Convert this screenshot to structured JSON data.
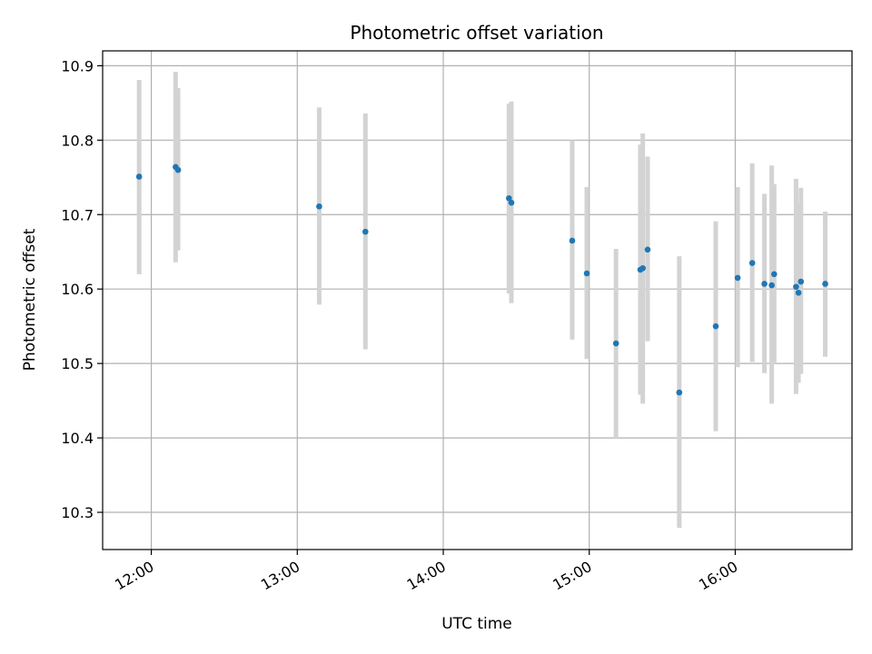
{
  "chart_data": {
    "type": "scatter",
    "title": "Photometric offset variation",
    "xlabel": "UTC time",
    "ylabel": "Photometric offset",
    "x_axis": {
      "kind": "time",
      "range": [
        "11:40",
        "16:48"
      ],
      "ticks": [
        "12:00",
        "13:00",
        "14:00",
        "15:00",
        "16:00"
      ]
    },
    "y_axis": {
      "range": [
        10.25,
        10.92
      ],
      "ticks": [
        "10.3",
        "10.4",
        "10.5",
        "10.6",
        "10.7",
        "10.8",
        "10.9"
      ]
    },
    "grid": true,
    "colors": {
      "marker": "#1f77b4",
      "errorbar": "#d3d3d3",
      "grid": "#b0b0b0"
    },
    "points": [
      {
        "time": "11:55",
        "y": 10.751,
        "yerr_low": 10.62,
        "yerr_high": 10.881
      },
      {
        "time": "12:10",
        "y": 10.764,
        "yerr_low": 10.636,
        "yerr_high": 10.892
      },
      {
        "time": "12:11",
        "y": 10.76,
        "yerr_low": 10.652,
        "yerr_high": 10.87
      },
      {
        "time": "13:09",
        "y": 10.711,
        "yerr_low": 10.579,
        "yerr_high": 10.844
      },
      {
        "time": "13:28",
        "y": 10.677,
        "yerr_low": 10.519,
        "yerr_high": 10.836
      },
      {
        "time": "14:27",
        "y": 10.722,
        "yerr_low": 10.594,
        "yerr_high": 10.849
      },
      {
        "time": "14:28",
        "y": 10.716,
        "yerr_low": 10.581,
        "yerr_high": 10.852
      },
      {
        "time": "14:53",
        "y": 10.665,
        "yerr_low": 10.532,
        "yerr_high": 10.8
      },
      {
        "time": "14:59",
        "y": 10.621,
        "yerr_low": 10.506,
        "yerr_high": 10.737
      },
      {
        "time": "15:11",
        "y": 10.527,
        "yerr_low": 10.4,
        "yerr_high": 10.654
      },
      {
        "time": "15:21",
        "y": 10.626,
        "yerr_low": 10.458,
        "yerr_high": 10.794
      },
      {
        "time": "15:22",
        "y": 10.628,
        "yerr_low": 10.446,
        "yerr_high": 10.809
      },
      {
        "time": "15:24",
        "y": 10.653,
        "yerr_low": 10.53,
        "yerr_high": 10.778
      },
      {
        "time": "15:37",
        "y": 10.461,
        "yerr_low": 10.279,
        "yerr_high": 10.644
      },
      {
        "time": "15:52",
        "y": 10.55,
        "yerr_low": 10.409,
        "yerr_high": 10.691
      },
      {
        "time": "16:01",
        "y": 10.615,
        "yerr_low": 10.495,
        "yerr_high": 10.737
      },
      {
        "time": "16:07",
        "y": 10.635,
        "yerr_low": 10.502,
        "yerr_high": 10.769
      },
      {
        "time": "16:12",
        "y": 10.607,
        "yerr_low": 10.487,
        "yerr_high": 10.728
      },
      {
        "time": "16:15",
        "y": 10.605,
        "yerr_low": 10.446,
        "yerr_high": 10.766
      },
      {
        "time": "16:16",
        "y": 10.62,
        "yerr_low": 10.5,
        "yerr_high": 10.741
      },
      {
        "time": "16:25",
        "y": 10.603,
        "yerr_low": 10.459,
        "yerr_high": 10.748
      },
      {
        "time": "16:26",
        "y": 10.595,
        "yerr_low": 10.474,
        "yerr_high": 10.715
      },
      {
        "time": "16:27",
        "y": 10.61,
        "yerr_low": 10.486,
        "yerr_high": 10.736
      },
      {
        "time": "16:37",
        "y": 10.607,
        "yerr_low": 10.509,
        "yerr_high": 10.704
      }
    ]
  }
}
